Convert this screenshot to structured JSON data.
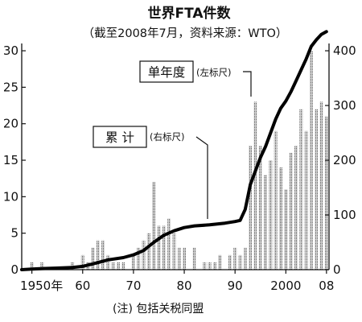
{
  "chart_data": {
    "type": "bar",
    "title": "世界FTA件数",
    "subtitle": "（截至2008年7月，资料来源：WTO）",
    "note": "(注) 包括关税同盟",
    "x_ticks": [
      "1950年",
      "60",
      "70",
      "80",
      "90",
      "2000",
      "08"
    ],
    "x_tick_years": [
      1950,
      1960,
      1970,
      1980,
      1990,
      2000,
      2008
    ],
    "xlim": [
      1948,
      2008.5
    ],
    "left_axis": {
      "ylim": [
        0,
        31
      ],
      "ticks": [
        0,
        5,
        10,
        15,
        20,
        25,
        30
      ]
    },
    "right_axis": {
      "ylim": [
        0,
        413.33
      ],
      "ticks": [
        0,
        100,
        200,
        300,
        400
      ]
    },
    "series": [
      {
        "name": "单年度",
        "unit_label": "(左标尺)",
        "axis": "left",
        "years": [
          1948,
          1949,
          1950,
          1951,
          1952,
          1953,
          1954,
          1955,
          1956,
          1957,
          1958,
          1959,
          1960,
          1961,
          1962,
          1963,
          1964,
          1965,
          1966,
          1967,
          1968,
          1969,
          1970,
          1971,
          1972,
          1973,
          1974,
          1975,
          1976,
          1977,
          1978,
          1979,
          1980,
          1981,
          1982,
          1983,
          1984,
          1985,
          1986,
          1987,
          1988,
          1989,
          1990,
          1991,
          1992,
          1993,
          1994,
          1995,
          1996,
          1997,
          1998,
          1999,
          2000,
          2001,
          2002,
          2003,
          2004,
          2005,
          2006,
          2007,
          2008
        ],
        "values": [
          0,
          0,
          1,
          0,
          1,
          0,
          0,
          0,
          0,
          0,
          1,
          0,
          2,
          1,
          3,
          4,
          4,
          2,
          1,
          1,
          1,
          0,
          2,
          3,
          4,
          5,
          12,
          6,
          6,
          7,
          5,
          3,
          3,
          0,
          3,
          0,
          1,
          1,
          1,
          2,
          0,
          2,
          3,
          2,
          3,
          17,
          23,
          17,
          13,
          15,
          19,
          14,
          11,
          16,
          17,
          22,
          19,
          30,
          22,
          23,
          21
        ],
        "color": "#999999"
      },
      {
        "name": "累 计",
        "unit_label": "(右标尺)",
        "axis": "right",
        "years": [
          1948,
          1950,
          1952,
          1955,
          1958,
          1960,
          1963,
          1965,
          1968,
          1970,
          1972,
          1974,
          1976,
          1978,
          1980,
          1982,
          1985,
          1988,
          1990,
          1991,
          1992,
          1993,
          1994,
          1995,
          1996,
          1997,
          1998,
          1999,
          2000,
          2001,
          2002,
          2003,
          2004,
          2005,
          2006,
          2007,
          2008
        ],
        "values": [
          0,
          1,
          2,
          3,
          4,
          6,
          13,
          18,
          22,
          27,
          35,
          50,
          63,
          71,
          77,
          80,
          82,
          85,
          88,
          90,
          110,
          155,
          180,
          205,
          225,
          250,
          275,
          295,
          308,
          325,
          345,
          365,
          385,
          408,
          420,
          430,
          435
        ],
        "color": "#000000"
      }
    ]
  }
}
